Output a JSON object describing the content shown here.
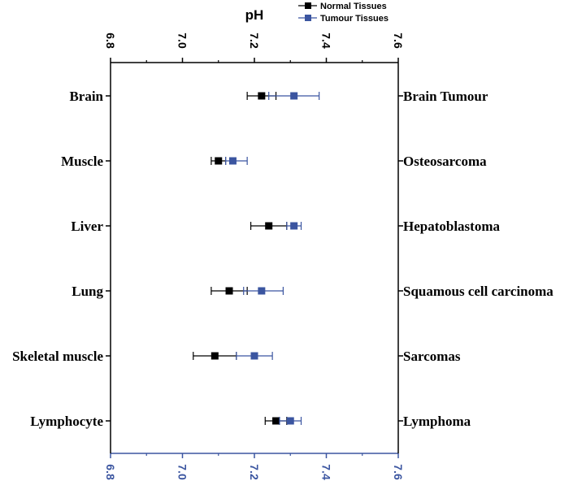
{
  "chart_data": {
    "type": "scatter",
    "xlabel": "pH",
    "xlim": [
      6.8,
      7.6
    ],
    "ticks": [
      "6.8",
      "7.0",
      "7.2",
      "7.4",
      "7.6"
    ],
    "legend_position": "top-right",
    "categories_left": [
      "Brain",
      "Muscle",
      "Liver",
      "Lung",
      "Skeletal muscle",
      "Lymphocyte"
    ],
    "categories_right": [
      "Brain Tumour",
      "Osteosarcoma",
      "Hepatoblastoma",
      "Squamous cell carcinoma",
      "Sarcomas",
      "Lymphoma"
    ],
    "series": [
      {
        "name": "Normal Tissues",
        "color": "#000000",
        "values": [
          7.22,
          7.1,
          7.24,
          7.13,
          7.09,
          7.26
        ],
        "err_low": [
          7.18,
          7.08,
          7.19,
          7.08,
          7.03,
          7.23
        ],
        "err_high": [
          7.26,
          7.12,
          7.29,
          7.18,
          7.15,
          7.29
        ]
      },
      {
        "name": "Tumour Tissues",
        "color": "#3b55a0",
        "values": [
          7.31,
          7.14,
          7.31,
          7.22,
          7.2,
          7.3
        ],
        "err_low": [
          7.24,
          7.12,
          7.29,
          7.17,
          7.15,
          7.27
        ],
        "err_high": [
          7.38,
          7.18,
          7.33,
          7.28,
          7.25,
          7.33
        ]
      }
    ],
    "colors": {
      "axis_top": "#000000",
      "axis_bottom": "#3b55a0"
    }
  }
}
